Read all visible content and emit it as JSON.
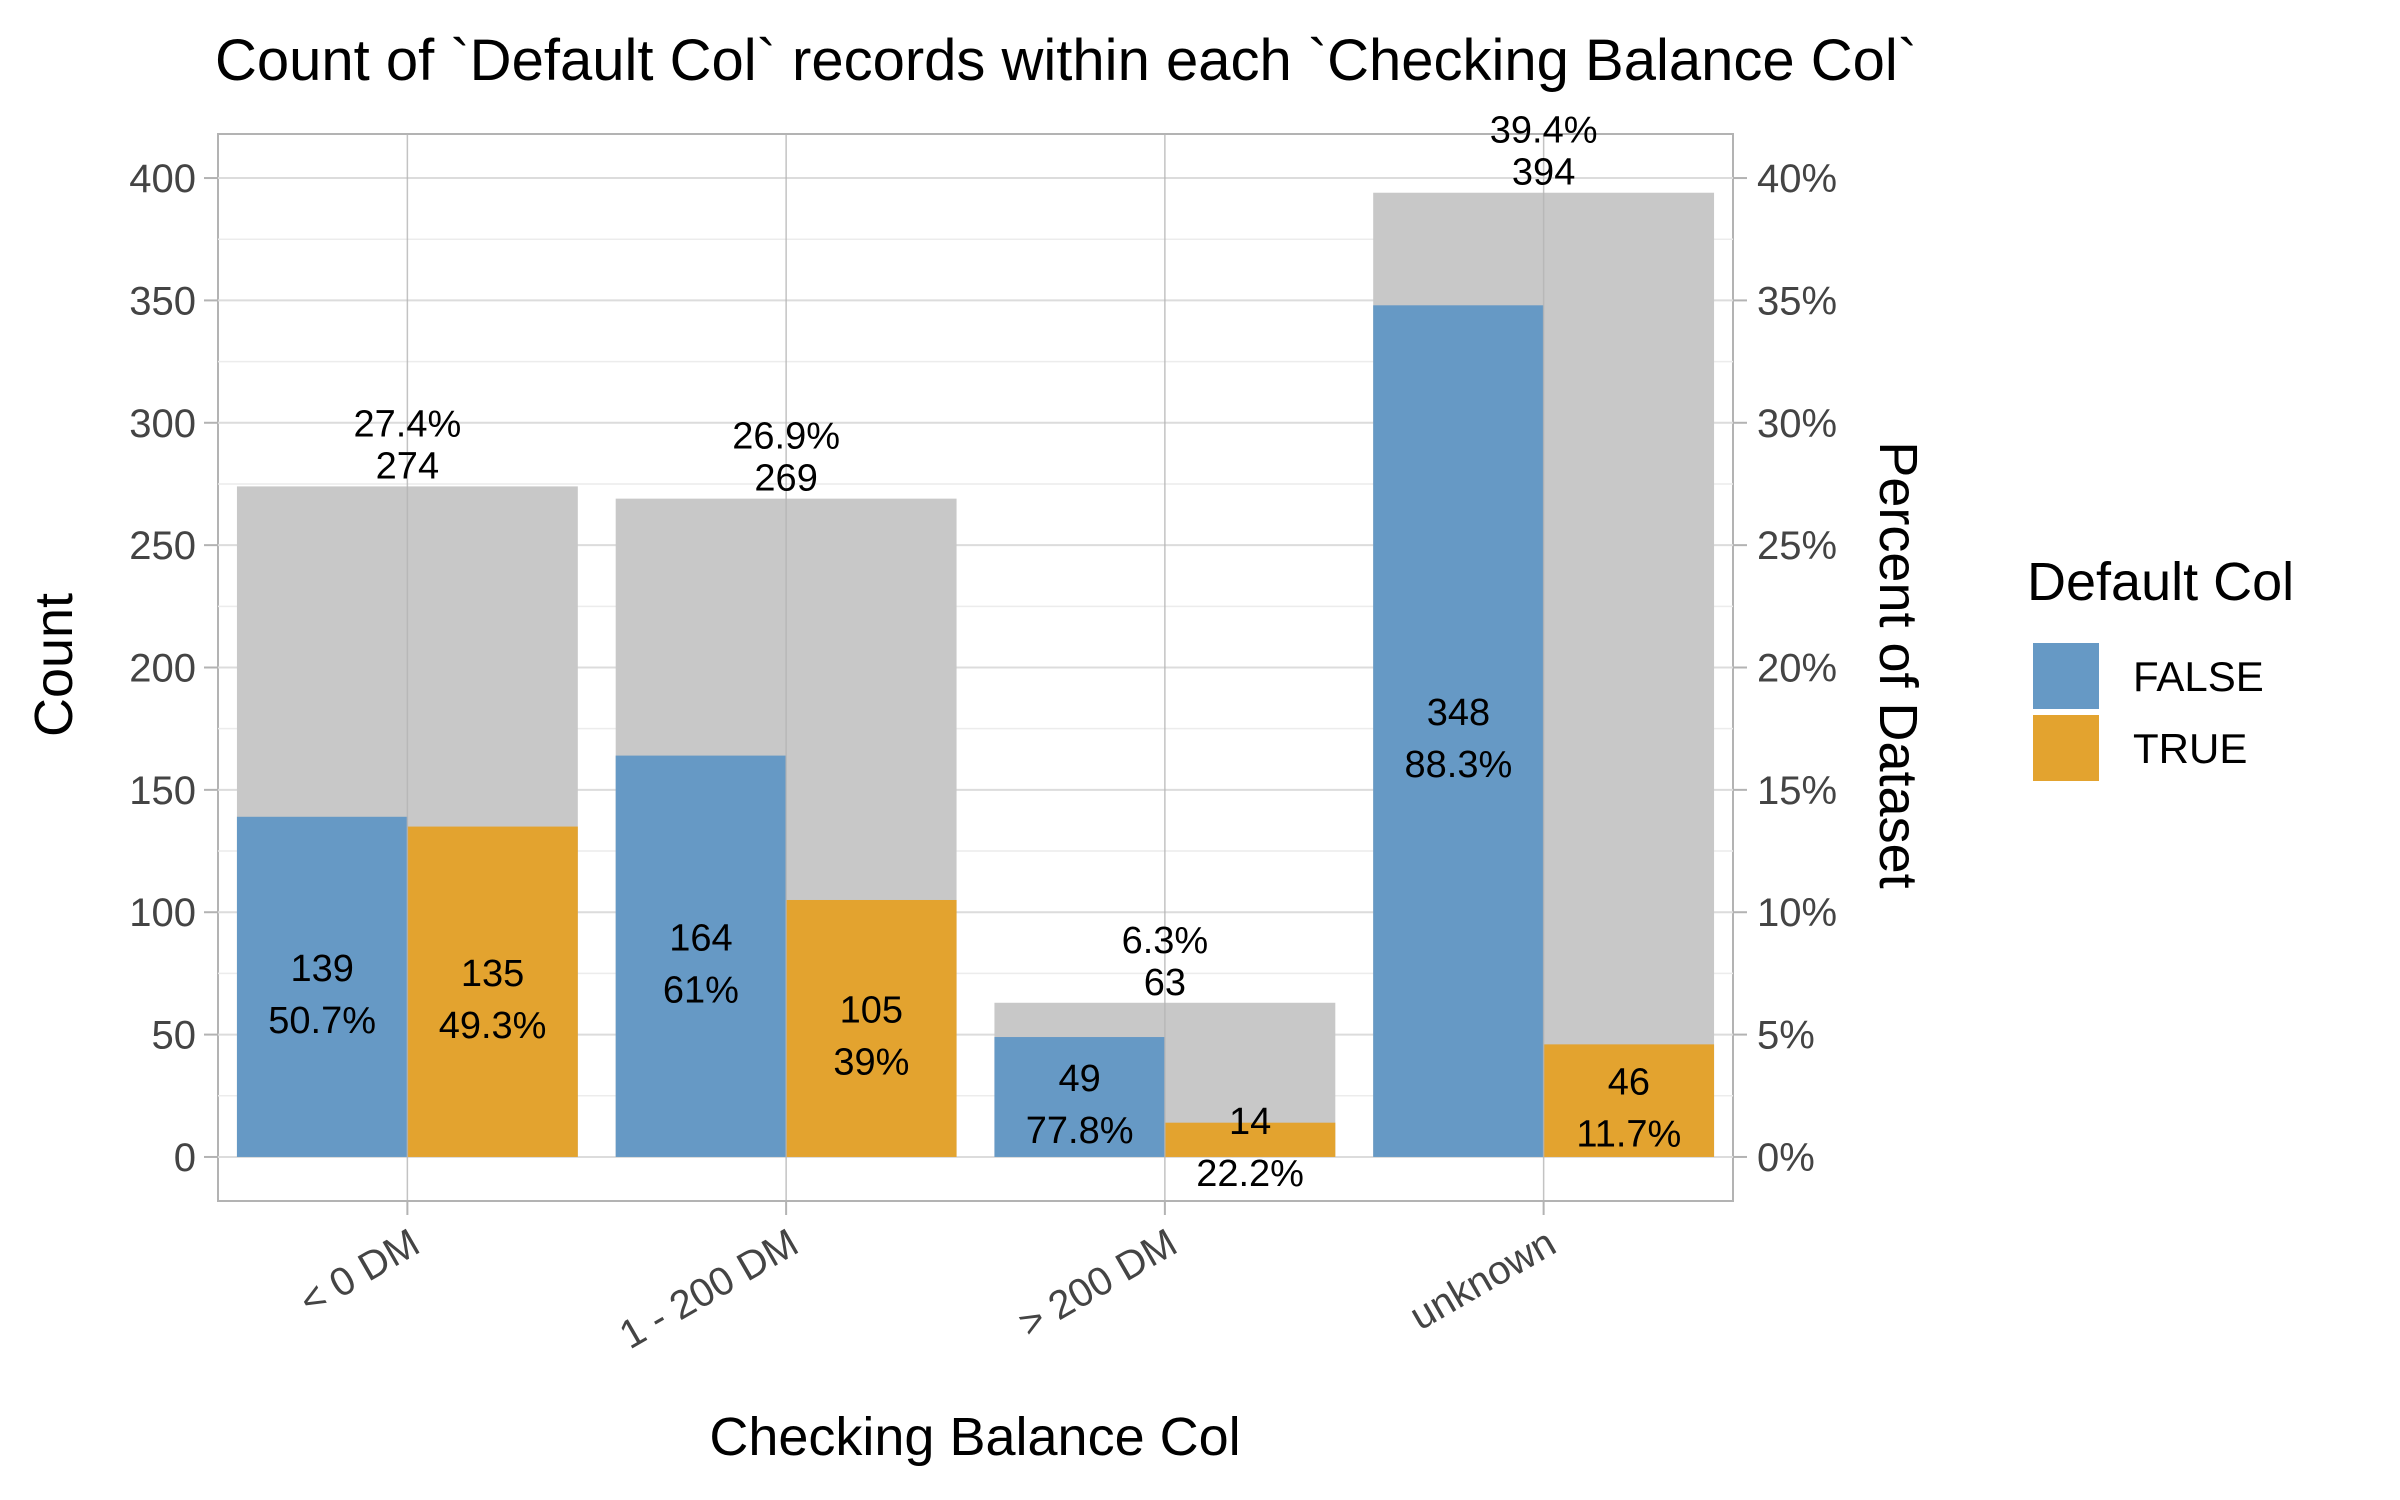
{
  "chart_data": {
    "type": "bar",
    "title": "Count of `Default Col` records within each `Checking Balance Col`",
    "xlabel": "Checking Balance Col",
    "ylabel": "Count",
    "ylabel_right": "Percent of Dataset",
    "ylim": [
      -18,
      418
    ],
    "y_ticks": [
      0,
      50,
      100,
      150,
      200,
      250,
      300,
      350,
      400
    ],
    "y_tick_labels": [
      "0",
      "50",
      "100",
      "150",
      "200",
      "250",
      "300",
      "350",
      "400"
    ],
    "y2_ticks": [
      0,
      5,
      10,
      15,
      20,
      25,
      30,
      35,
      40
    ],
    "y2_tick_labels": [
      "0%",
      "5%",
      "10%",
      "15%",
      "20%",
      "25%",
      "30%",
      "35%",
      "40%"
    ],
    "categories": [
      "< 0 DM",
      "1 - 200 DM",
      "> 200 DM",
      "unknown"
    ],
    "totals": [
      274,
      269,
      63,
      394
    ],
    "total_labels": [
      "27.4%\n274",
      "26.9%\n269",
      "6.3%\n63",
      "39.4%\n394"
    ],
    "series": [
      {
        "name": "FALSE",
        "color": "#6699c5",
        "values": [
          139,
          164,
          49,
          348
        ],
        "labels": [
          "139\n50.7%",
          "164\n61%",
          "49\n77.8%",
          "348\n88.3%"
        ]
      },
      {
        "name": "TRUE",
        "color": "#e3a32f",
        "values": [
          135,
          105,
          14,
          46
        ],
        "labels": [
          "135\n49.3%",
          "105\n39%",
          "14\n22.2%",
          "46\n11.7%"
        ]
      }
    ],
    "total_bar_color": "#c8c8c8",
    "legend": {
      "title": "Default Col",
      "placement": "right"
    },
    "grid": true
  }
}
